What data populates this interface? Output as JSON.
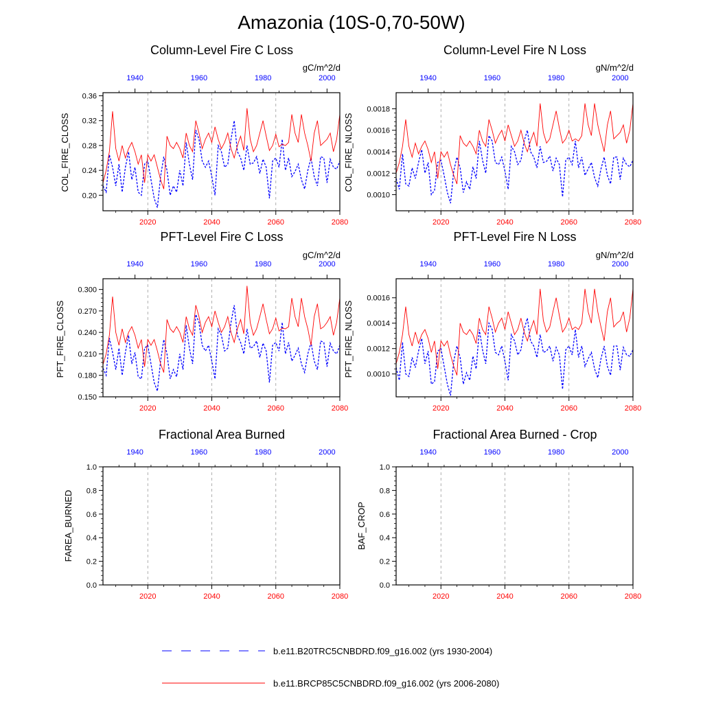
{
  "figure": {
    "title": "Amazonia (10S-0,70-50W)"
  },
  "legend": [
    {
      "label": "b.e11.B20TRC5CNBDRD.f09_g16.002 (yrs 1930-2004)",
      "color": "#0000ff",
      "style": "dashed"
    },
    {
      "label": "b.e11.BRCP85C5CNBDRD.f09_g16.002 (yrs 2006-2080)",
      "color": "#ff0000",
      "style": "solid"
    }
  ],
  "colors": {
    "historical": "#0000ff",
    "future": "#ff0000",
    "axis": "#000000",
    "refline": "#9a9a9a"
  },
  "chart_data": [
    {
      "type": "line",
      "title": "Column-Level Fire C Loss",
      "units": "gC/m^2/d",
      "ylabel": "COL_FIRE_CLOSS",
      "ylim": [
        0.175,
        0.365
      ],
      "yticks": [
        0.2,
        0.24,
        0.28,
        0.32,
        0.36
      ],
      "ytick_labels": [
        "0.20",
        "0.24",
        "0.28",
        "0.32",
        "0.36"
      ],
      "x_bottom_ticks": [
        "2020",
        "2040",
        "2060",
        "2080"
      ],
      "x_top_ticks": [
        "1940",
        "1960",
        "1980",
        "2000"
      ],
      "x_bottom_range": [
        2006,
        2080
      ],
      "x_top_range": [
        1930,
        2004
      ],
      "series": [
        {
          "name": "b.e11.B20TRC5CNBDRD.f09_g16.002 (yrs 1930-2004)",
          "values": [
            0.215,
            0.205,
            0.265,
            0.245,
            0.215,
            0.25,
            0.205,
            0.245,
            0.27,
            0.225,
            0.245,
            0.205,
            0.2,
            0.25,
            0.255,
            0.225,
            0.195,
            0.18,
            0.23,
            0.262,
            0.24,
            0.2,
            0.215,
            0.205,
            0.24,
            0.215,
            0.285,
            0.25,
            0.225,
            0.305,
            0.29,
            0.255,
            0.245,
            0.255,
            0.23,
            0.2,
            0.28,
            0.27,
            0.245,
            0.25,
            0.29,
            0.32,
            0.27,
            0.26,
            0.24,
            0.28,
            0.25,
            0.252,
            0.262,
            0.235,
            0.258,
            0.245,
            0.195,
            0.255,
            0.26,
            0.245,
            0.29,
            0.24,
            0.26,
            0.23,
            0.238,
            0.25,
            0.225,
            0.21,
            0.24,
            0.26,
            0.23,
            0.215,
            0.262,
            0.26,
            0.22,
            0.258,
            0.245,
            0.242,
            0.255
          ]
        },
        {
          "name": "b.e11.BRCP85C5CNBDRD.f09_g16.002 (yrs 2006-2080)",
          "values": [
            0.22,
            0.24,
            0.27,
            0.335,
            0.275,
            0.255,
            0.28,
            0.26,
            0.275,
            0.285,
            0.27,
            0.25,
            0.265,
            0.22,
            0.265,
            0.255,
            0.265,
            0.245,
            0.225,
            0.21,
            0.295,
            0.28,
            0.275,
            0.285,
            0.275,
            0.26,
            0.3,
            0.28,
            0.27,
            0.32,
            0.3,
            0.275,
            0.29,
            0.3,
            0.285,
            0.31,
            0.29,
            0.275,
            0.285,
            0.3,
            0.275,
            0.26,
            0.28,
            0.295,
            0.272,
            0.34,
            0.29,
            0.27,
            0.28,
            0.3,
            0.32,
            0.295,
            0.272,
            0.28,
            0.298,
            0.278,
            0.282,
            0.28,
            0.285,
            0.33,
            0.3,
            0.285,
            0.33,
            0.3,
            0.28,
            0.255,
            0.3,
            0.32,
            0.28,
            0.285,
            0.29,
            0.3,
            0.27,
            0.29,
            0.33
          ]
        }
      ]
    },
    {
      "type": "line",
      "title": "Column-Level Fire N Loss",
      "units": "gN/m^2/d",
      "ylabel": "COL_FIRE_NLOSS",
      "ylim": [
        0.00085,
        0.00195
      ],
      "yticks": [
        0.001,
        0.0012,
        0.0014,
        0.0016,
        0.0018
      ],
      "ytick_labels": [
        "0.0010",
        "0.0012",
        "0.0014",
        "0.0016",
        "0.0018"
      ],
      "x_bottom_ticks": [
        "2020",
        "2040",
        "2060",
        "2080"
      ],
      "x_top_ticks": [
        "1940",
        "1960",
        "1980",
        "2000"
      ],
      "x_bottom_range": [
        2006,
        2080
      ],
      "x_top_range": [
        1930,
        2004
      ],
      "series": [
        {
          "name": "b.e11.B20TRC5CNBDRD.f09_g16.002 (yrs 1930-2004)",
          "values": [
            0.00115,
            0.00105,
            0.00138,
            0.0011,
            0.00108,
            0.00125,
            0.00115,
            0.0013,
            0.00142,
            0.0012,
            0.0013,
            0.001,
            0.00104,
            0.0013,
            0.00132,
            0.00118,
            0.00102,
            0.00092,
            0.00122,
            0.00135,
            0.00125,
            0.00102,
            0.00112,
            0.00105,
            0.00126,
            0.00115,
            0.0015,
            0.00132,
            0.0012,
            0.00155,
            0.0015,
            0.0013,
            0.00128,
            0.00135,
            0.00122,
            0.00105,
            0.00145,
            0.0014,
            0.00128,
            0.00132,
            0.0015,
            0.0016,
            0.0014,
            0.00135,
            0.00125,
            0.00145,
            0.0013,
            0.00131,
            0.00136,
            0.00122,
            0.00134,
            0.00128,
            0.00098,
            0.00132,
            0.00135,
            0.00128,
            0.0015,
            0.00125,
            0.00135,
            0.00118,
            0.00124,
            0.0013,
            0.00116,
            0.00108,
            0.00124,
            0.00135,
            0.00118,
            0.0011,
            0.00135,
            0.00135,
            0.00114,
            0.00134,
            0.00128,
            0.00126,
            0.00132
          ]
        },
        {
          "name": "b.e11.BRCP85C5CNBDRD.f09_g16.002 (yrs 2006-2080)",
          "values": [
            0.0012,
            0.0013,
            0.00145,
            0.0017,
            0.00145,
            0.00135,
            0.00148,
            0.00138,
            0.00145,
            0.0015,
            0.00142,
            0.0013,
            0.0014,
            0.00115,
            0.0014,
            0.00135,
            0.0014,
            0.00128,
            0.00118,
            0.0011,
            0.00155,
            0.00148,
            0.00145,
            0.0015,
            0.00145,
            0.00138,
            0.0016,
            0.0015,
            0.00145,
            0.0017,
            0.0016,
            0.00148,
            0.00155,
            0.0016,
            0.0015,
            0.00165,
            0.00155,
            0.00145,
            0.0015,
            0.0016,
            0.00148,
            0.0014,
            0.0015,
            0.00158,
            0.00145,
            0.00185,
            0.00158,
            0.00148,
            0.00152,
            0.00165,
            0.00178,
            0.00162,
            0.00148,
            0.00152,
            0.0016,
            0.0015,
            0.00152,
            0.0015,
            0.00155,
            0.00185,
            0.00165,
            0.00155,
            0.00185,
            0.00165,
            0.00152,
            0.0014,
            0.00165,
            0.00178,
            0.00152,
            0.00155,
            0.00158,
            0.00165,
            0.00148,
            0.0016,
            0.00185
          ]
        }
      ]
    },
    {
      "type": "line",
      "title": "PFT-Level Fire C Loss",
      "units": "gC/m^2/d",
      "ylabel": "PFT_FIRE_CLOSS",
      "ylim": [
        0.15,
        0.315
      ],
      "yticks": [
        0.15,
        0.18,
        0.21,
        0.24,
        0.27,
        0.3
      ],
      "ytick_labels": [
        "0.150",
        "0.180",
        "0.210",
        "0.240",
        "0.270",
        "0.300"
      ],
      "x_bottom_ticks": [
        "2020",
        "2040",
        "2060",
        "2080"
      ],
      "x_top_ticks": [
        "1940",
        "1960",
        "1980",
        "2000"
      ],
      "x_bottom_range": [
        2006,
        2080
      ],
      "x_top_range": [
        1930,
        2004
      ],
      "series": [
        {
          "name": "b.e11.B20TRC5CNBDRD.f09_g16.002 (yrs 1930-2004)",
          "values": [
            0.19,
            0.18,
            0.232,
            0.212,
            0.188,
            0.218,
            0.18,
            0.212,
            0.236,
            0.196,
            0.212,
            0.178,
            0.175,
            0.218,
            0.222,
            0.196,
            0.17,
            0.158,
            0.2,
            0.23,
            0.21,
            0.175,
            0.188,
            0.178,
            0.21,
            0.188,
            0.25,
            0.218,
            0.196,
            0.265,
            0.254,
            0.222,
            0.214,
            0.222,
            0.2,
            0.175,
            0.245,
            0.236,
            0.214,
            0.218,
            0.254,
            0.278,
            0.236,
            0.226,
            0.21,
            0.245,
            0.218,
            0.22,
            0.228,
            0.205,
            0.225,
            0.214,
            0.17,
            0.222,
            0.226,
            0.214,
            0.254,
            0.21,
            0.226,
            0.2,
            0.208,
            0.218,
            0.196,
            0.184,
            0.21,
            0.226,
            0.2,
            0.188,
            0.228,
            0.226,
            0.192,
            0.225,
            0.214,
            0.21,
            0.222
          ]
        },
        {
          "name": "b.e11.BRCP85C5CNBDRD.f09_g16.002 (yrs 2006-2080)",
          "values": [
            0.195,
            0.21,
            0.236,
            0.29,
            0.24,
            0.222,
            0.245,
            0.226,
            0.24,
            0.248,
            0.236,
            0.218,
            0.23,
            0.192,
            0.23,
            0.222,
            0.23,
            0.214,
            0.196,
            0.184,
            0.258,
            0.245,
            0.24,
            0.248,
            0.24,
            0.226,
            0.262,
            0.245,
            0.236,
            0.278,
            0.262,
            0.24,
            0.254,
            0.262,
            0.248,
            0.27,
            0.254,
            0.24,
            0.248,
            0.262,
            0.24,
            0.226,
            0.245,
            0.258,
            0.238,
            0.305,
            0.254,
            0.236,
            0.245,
            0.262,
            0.28,
            0.258,
            0.238,
            0.245,
            0.26,
            0.242,
            0.246,
            0.245,
            0.248,
            0.288,
            0.262,
            0.248,
            0.288,
            0.262,
            0.245,
            0.222,
            0.262,
            0.28,
            0.245,
            0.248,
            0.254,
            0.262,
            0.236,
            0.254,
            0.288
          ]
        }
      ]
    },
    {
      "type": "line",
      "title": "PFT-Level Fire N Loss",
      "units": "gN/m^2/d",
      "ylabel": "PFT_FIRE_NLOSS",
      "ylim": [
        0.00082,
        0.00175
      ],
      "yticks": [
        0.001,
        0.0012,
        0.0014,
        0.0016
      ],
      "ytick_labels": [
        "0.0010",
        "0.0012",
        "0.0014",
        "0.0016"
      ],
      "x_bottom_ticks": [
        "2020",
        "2040",
        "2060",
        "2080"
      ],
      "x_top_ticks": [
        "1940",
        "1960",
        "1980",
        "2000"
      ],
      "x_bottom_range": [
        2006,
        2080
      ],
      "x_top_range": [
        1930,
        2004
      ],
      "series": [
        {
          "name": "b.e11.B20TRC5CNBDRD.f09_g16.002 (yrs 1930-2004)",
          "values": [
            0.00105,
            0.00095,
            0.00125,
            0.001,
            0.00098,
            0.00113,
            0.00105,
            0.00118,
            0.00128,
            0.00108,
            0.00118,
            0.00092,
            0.00094,
            0.00118,
            0.0012,
            0.00106,
            0.00092,
            0.00083,
            0.0011,
            0.00122,
            0.00113,
            0.00092,
            0.00101,
            0.00095,
            0.00114,
            0.00104,
            0.00135,
            0.00119,
            0.00108,
            0.0014,
            0.00135,
            0.00117,
            0.00115,
            0.00122,
            0.0011,
            0.00095,
            0.00131,
            0.00126,
            0.00115,
            0.00119,
            0.00135,
            0.00144,
            0.00126,
            0.00122,
            0.00113,
            0.00131,
            0.00117,
            0.00118,
            0.00122,
            0.0011,
            0.00121,
            0.00115,
            0.00088,
            0.00119,
            0.00122,
            0.00115,
            0.00135,
            0.00113,
            0.00122,
            0.00106,
            0.00112,
            0.00117,
            0.00104,
            0.00097,
            0.00112,
            0.00122,
            0.00106,
            0.00099,
            0.00122,
            0.00122,
            0.00103,
            0.00121,
            0.00115,
            0.00114,
            0.00119
          ]
        },
        {
          "name": "b.e11.BRCP85C5CNBDRD.f09_g16.002 (yrs 2006-2080)",
          "values": [
            0.00108,
            0.00117,
            0.00131,
            0.00153,
            0.00131,
            0.00122,
            0.00133,
            0.00124,
            0.00131,
            0.00135,
            0.00128,
            0.00117,
            0.00126,
            0.00104,
            0.00126,
            0.00122,
            0.00126,
            0.00115,
            0.00106,
            0.00099,
            0.0014,
            0.00133,
            0.00131,
            0.00135,
            0.00131,
            0.00124,
            0.00144,
            0.00135,
            0.00131,
            0.00153,
            0.00144,
            0.00133,
            0.0014,
            0.00144,
            0.00135,
            0.00149,
            0.0014,
            0.00131,
            0.00135,
            0.00144,
            0.00133,
            0.00126,
            0.00135,
            0.00142,
            0.00131,
            0.00167,
            0.00142,
            0.00133,
            0.00137,
            0.00149,
            0.0016,
            0.00146,
            0.00133,
            0.00137,
            0.00144,
            0.00135,
            0.00137,
            0.00135,
            0.0014,
            0.00167,
            0.00149,
            0.0014,
            0.00167,
            0.00149,
            0.00137,
            0.00126,
            0.00149,
            0.0016,
            0.00137,
            0.0014,
            0.00142,
            0.00149,
            0.00133,
            0.00144,
            0.00167
          ]
        }
      ]
    },
    {
      "type": "line",
      "title": "Fractional Area Burned",
      "ylabel": "FAREA_BURNED",
      "ylim": [
        0.0,
        1.0
      ],
      "yticks": [
        0.0,
        0.2,
        0.4,
        0.6,
        0.8,
        1.0
      ],
      "ytick_labels": [
        "0.0",
        "0.2",
        "0.4",
        "0.6",
        "0.8",
        "1.0"
      ],
      "x_bottom_ticks": [
        "2020",
        "2040",
        "2060",
        "2080"
      ],
      "x_top_ticks": [
        "1940",
        "1960",
        "1980",
        "2000"
      ],
      "x_bottom_range": [
        2006,
        2080
      ],
      "x_top_range": [
        1930,
        2004
      ],
      "series": []
    },
    {
      "type": "line",
      "title": "Fractional Area Burned - Crop",
      "ylabel": "BAF_CROP",
      "ylim": [
        0.0,
        1.0
      ],
      "yticks": [
        0.0,
        0.2,
        0.4,
        0.6,
        0.8,
        1.0
      ],
      "ytick_labels": [
        "0.0",
        "0.2",
        "0.4",
        "0.6",
        "0.8",
        "1.0"
      ],
      "x_bottom_ticks": [
        "2020",
        "2040",
        "2060",
        "2080"
      ],
      "x_top_ticks": [
        "1940",
        "1960",
        "1980",
        "2000"
      ],
      "x_bottom_range": [
        2006,
        2080
      ],
      "x_top_range": [
        1930,
        2004
      ],
      "series": []
    }
  ]
}
